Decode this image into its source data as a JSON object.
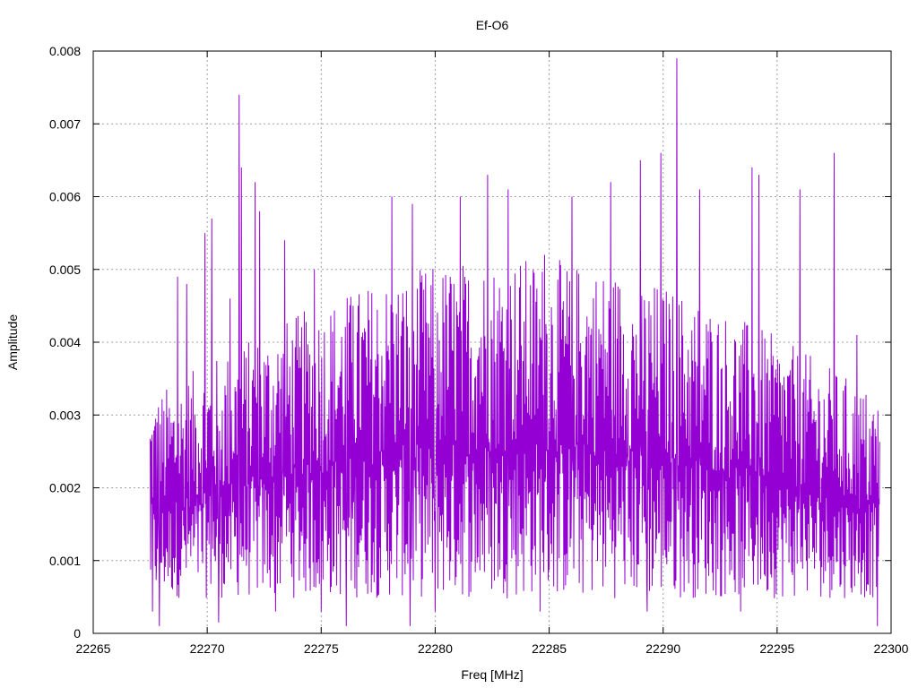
{
  "chart_data": {
    "type": "line",
    "title": "Ef-O6",
    "xlabel": "Freq [MHz]",
    "ylabel": "Amplitude",
    "xlim": [
      22265,
      22300
    ],
    "ylim": [
      0,
      0.008
    ],
    "x_ticks": [
      "22265",
      "22270",
      "22275",
      "22280",
      "22285",
      "22290",
      "22295",
      "22300"
    ],
    "y_ticks": [
      "0",
      "0.001",
      "0.002",
      "0.003",
      "0.004",
      "0.005",
      "0.006",
      "0.007",
      "0.008"
    ],
    "grid": true,
    "series": [
      {
        "color": "#9400d3",
        "x_range": [
          22267.5,
          22299.5
        ],
        "peaks": [
          {
            "x": 22267.8,
            "y": 0.0029
          },
          {
            "x": 22268.7,
            "y": 0.0049
          },
          {
            "x": 22269.1,
            "y": 0.0048
          },
          {
            "x": 22269.9,
            "y": 0.0055
          },
          {
            "x": 22270.2,
            "y": 0.0057
          },
          {
            "x": 22271.0,
            "y": 0.0046
          },
          {
            "x": 22271.4,
            "y": 0.0074
          },
          {
            "x": 22271.5,
            "y": 0.0064
          },
          {
            "x": 22272.1,
            "y": 0.0062
          },
          {
            "x": 22272.3,
            "y": 0.0058
          },
          {
            "x": 22273.4,
            "y": 0.0054
          },
          {
            "x": 22274.7,
            "y": 0.005
          },
          {
            "x": 22276.4,
            "y": 0.0045
          },
          {
            "x": 22278.1,
            "y": 0.006
          },
          {
            "x": 22279.0,
            "y": 0.0059
          },
          {
            "x": 22280.0,
            "y": 0.0048
          },
          {
            "x": 22281.1,
            "y": 0.006
          },
          {
            "x": 22282.3,
            "y": 0.0063
          },
          {
            "x": 22283.2,
            "y": 0.0061
          },
          {
            "x": 22284.8,
            "y": 0.0052
          },
          {
            "x": 22286.0,
            "y": 0.006
          },
          {
            "x": 22287.7,
            "y": 0.0062
          },
          {
            "x": 22289.0,
            "y": 0.0065
          },
          {
            "x": 22289.9,
            "y": 0.0066
          },
          {
            "x": 22290.6,
            "y": 0.0079
          },
          {
            "x": 22291.6,
            "y": 0.0061
          },
          {
            "x": 22293.9,
            "y": 0.0064
          },
          {
            "x": 22294.2,
            "y": 0.0063
          },
          {
            "x": 22296.0,
            "y": 0.0061
          },
          {
            "x": 22297.5,
            "y": 0.0066
          },
          {
            "x": 22298.5,
            "y": 0.0041
          }
        ],
        "troughs": [
          {
            "x": 22267.6,
            "y": 0.0003
          },
          {
            "x": 22267.9,
            "y": 0.0001
          },
          {
            "x": 22270.5,
            "y": 0.00015
          },
          {
            "x": 22273.0,
            "y": 0.0003
          },
          {
            "x": 22275.0,
            "y": 0.0003
          },
          {
            "x": 22276.1,
            "y": 0.0001
          },
          {
            "x": 22278.9,
            "y": 0.0001
          },
          {
            "x": 22280.0,
            "y": 0.0003
          },
          {
            "x": 22284.6,
            "y": 0.0003
          },
          {
            "x": 22289.3,
            "y": 0.0003
          },
          {
            "x": 22293.4,
            "y": 0.0003
          },
          {
            "x": 22299.4,
            "y": 0.0001
          }
        ],
        "typical_range": [
          0.0008,
          0.0045
        ]
      }
    ]
  }
}
